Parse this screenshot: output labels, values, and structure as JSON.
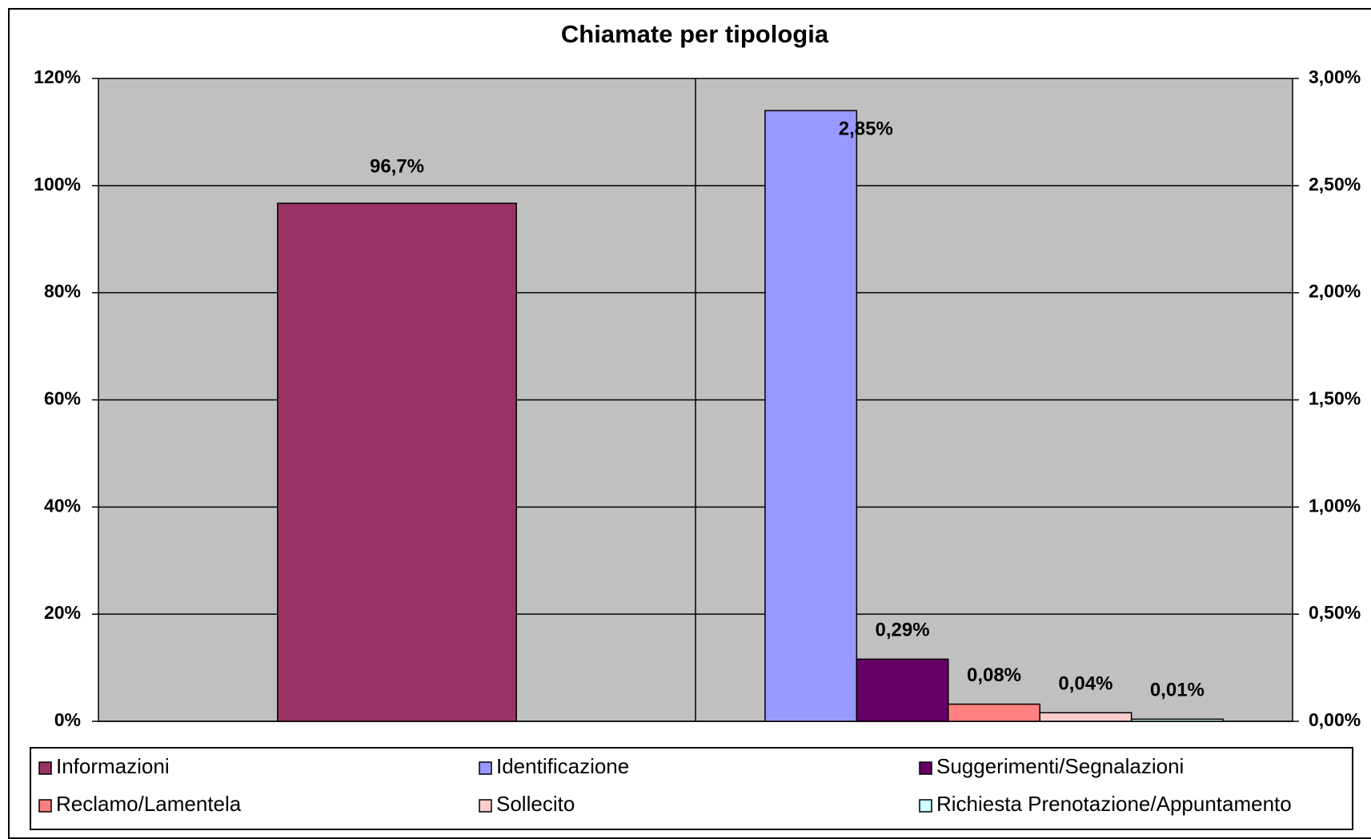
{
  "chart_data": {
    "type": "bar",
    "title": "Chiamate per tipologia",
    "categories": [
      null,
      null
    ],
    "series": [
      {
        "name": "Informazioni",
        "color": "#993366",
        "values": [
          96.7,
          null
        ],
        "value_labels": [
          "96,7%",
          null
        ]
      },
      {
        "name": "Identificazione",
        "color": "#9999ff",
        "axis": "y2",
        "values": [
          null,
          2.85
        ],
        "value_labels": [
          null,
          "2,85%"
        ]
      },
      {
        "name": "Suggerimenti/Segnalazioni",
        "color": "#660066",
        "axis": "y2",
        "values": [
          null,
          0.29
        ],
        "value_labels": [
          null,
          "0,29%"
        ]
      },
      {
        "name": "Reclamo/Lamentela",
        "color": "#ff8080",
        "axis": "y2",
        "values": [
          null,
          0.08
        ],
        "value_labels": [
          null,
          "0,08%"
        ]
      },
      {
        "name": "Sollecito",
        "color": "#ffcccc",
        "axis": "y2",
        "values": [
          null,
          0.04
        ],
        "value_labels": [
          null,
          "0,04%"
        ]
      },
      {
        "name": "Richiesta Prenotazione/Appuntamento",
        "color": "#ccffff",
        "axis": "y2",
        "values": [
          null,
          0.01
        ],
        "value_labels": [
          null,
          "0,01%"
        ]
      }
    ],
    "ylim": [
      0,
      120
    ],
    "yticks": [
      {
        "value": 0,
        "label": "0%"
      },
      {
        "value": 20,
        "label": "20%"
      },
      {
        "value": 40,
        "label": "40%"
      },
      {
        "value": 60,
        "label": "60%"
      },
      {
        "value": 80,
        "label": "80%"
      },
      {
        "value": 100,
        "label": "100%"
      },
      {
        "value": 120,
        "label": "120%"
      }
    ],
    "y2lim": [
      0,
      3
    ],
    "y2ticks": [
      {
        "value": 0,
        "label": "0,00%"
      },
      {
        "value": 0.5,
        "label": "0,50%"
      },
      {
        "value": 1,
        "label": "1,00%"
      },
      {
        "value": 1.5,
        "label": "1,50%"
      },
      {
        "value": 2,
        "label": "2,00%"
      },
      {
        "value": 2.5,
        "label": "2,50%"
      },
      {
        "value": 3,
        "label": "3,00%"
      }
    ],
    "grid": true,
    "legend": "bottom",
    "plot_background": "#c0c0c0"
  }
}
